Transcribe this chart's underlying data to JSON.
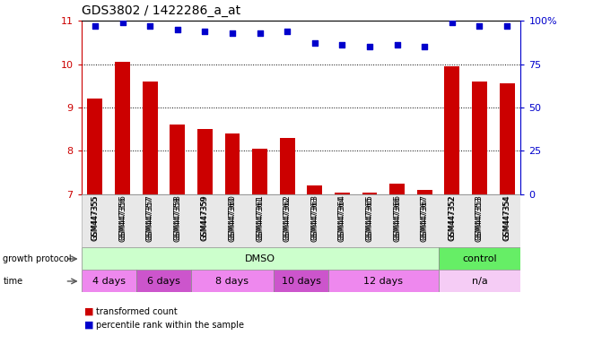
{
  "title": "GDS3802 / 1422286_a_at",
  "samples": [
    "GSM447355",
    "GSM447356",
    "GSM447357",
    "GSM447358",
    "GSM447359",
    "GSM447360",
    "GSM447361",
    "GSM447362",
    "GSM447363",
    "GSM447364",
    "GSM447365",
    "GSM447366",
    "GSM447367",
    "GSM447352",
    "GSM447353",
    "GSM447354"
  ],
  "bar_values": [
    9.2,
    10.05,
    9.6,
    8.6,
    8.5,
    8.4,
    8.05,
    8.3,
    7.2,
    7.05,
    7.05,
    7.25,
    7.1,
    9.95,
    9.6,
    9.55
  ],
  "dot_values": [
    97,
    99,
    97,
    95,
    94,
    93,
    93,
    94,
    87,
    86,
    85,
    86,
    85,
    99,
    97,
    97
  ],
  "bar_color": "#cc0000",
  "dot_color": "#0000cc",
  "ylim_left": [
    7,
    11
  ],
  "ylim_right": [
    0,
    100
  ],
  "yticks_left": [
    7,
    8,
    9,
    10,
    11
  ],
  "yticks_right": [
    0,
    25,
    50,
    75,
    100
  ],
  "grid_vals": [
    8,
    9,
    10
  ],
  "groups": [
    {
      "label": "DMSO",
      "start": 0,
      "end": 13,
      "color": "#ccffcc"
    },
    {
      "label": "control",
      "start": 13,
      "end": 16,
      "color": "#66ee66"
    }
  ],
  "time_groups": [
    {
      "label": "4 days",
      "start": 0,
      "end": 2,
      "color": "#ee88ee"
    },
    {
      "label": "6 days",
      "start": 2,
      "end": 4,
      "color": "#cc55cc"
    },
    {
      "label": "8 days",
      "start": 4,
      "end": 7,
      "color": "#ee88ee"
    },
    {
      "label": "10 days",
      "start": 7,
      "end": 9,
      "color": "#cc55cc"
    },
    {
      "label": "12 days",
      "start": 9,
      "end": 13,
      "color": "#ee88ee"
    },
    {
      "label": "n/a",
      "start": 13,
      "end": 16,
      "color": "#f5ccf5"
    }
  ],
  "legend_items": [
    {
      "label": "transformed count",
      "color": "#cc0000"
    },
    {
      "label": "percentile rank within the sample",
      "color": "#0000cc"
    }
  ],
  "label_growth": "growth protocol",
  "label_time": "time",
  "tick_color_left": "#cc0000",
  "tick_color_right": "#0000cc",
  "bar_bottom": 7,
  "xlim": [
    -0.5,
    15.5
  ]
}
